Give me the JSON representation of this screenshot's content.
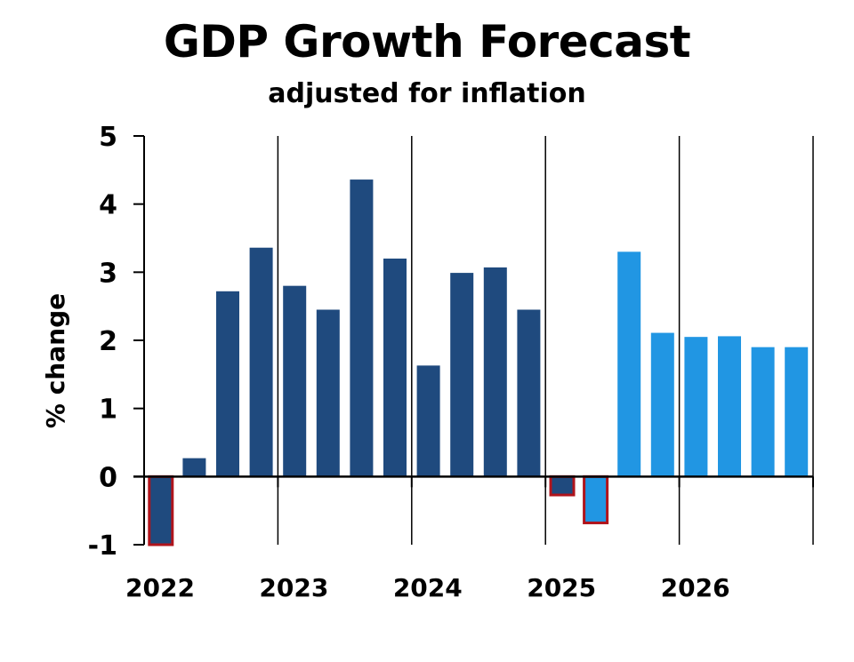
{
  "chart_data": {
    "type": "bar",
    "title": "GDP Growth Forecast",
    "subtitle": "adjusted for inflation",
    "ylabel": "% change",
    "xlabel": "",
    "ylim": [
      -1,
      5
    ],
    "yticks": [
      "5",
      "4",
      "3",
      "2",
      "1",
      "0",
      "-1"
    ],
    "ytick_values": [
      5,
      4,
      3,
      2,
      1,
      0,
      -1
    ],
    "year_labels": [
      "2022",
      "2023",
      "2024",
      "2025",
      "2026"
    ],
    "grid": "vertical lines at each year boundary",
    "quarters": [
      "2022 Q1",
      "2022 Q2",
      "2022 Q3",
      "2022 Q4",
      "2023 Q1",
      "2023 Q2",
      "2023 Q3",
      "2023 Q4",
      "2024 Q1",
      "2024 Q2",
      "2024 Q3",
      "2024 Q4",
      "2025 Q1",
      "2025 Q2",
      "2025 Q3",
      "2025 Q4",
      "2026 Q1",
      "2026 Q2",
      "2026 Q3",
      "2026 Q4"
    ],
    "values": [
      -1.0,
      0.27,
      2.72,
      3.36,
      2.8,
      2.45,
      4.36,
      3.2,
      1.63,
      2.99,
      3.07,
      2.45,
      -0.27,
      -0.68,
      3.3,
      2.11,
      2.05,
      2.06,
      1.9,
      1.9
    ],
    "bar_kind": [
      "actual",
      "actual",
      "actual",
      "actual",
      "actual",
      "actual",
      "actual",
      "actual",
      "actual",
      "actual",
      "actual",
      "actual",
      "actual",
      "forecast",
      "forecast",
      "forecast",
      "forecast",
      "forecast",
      "forecast",
      "forecast"
    ],
    "colors": {
      "actual": "#1f4a7e",
      "forecast": "#2196e3",
      "negative_outline": "#b0141c",
      "axis": "#000000"
    }
  }
}
